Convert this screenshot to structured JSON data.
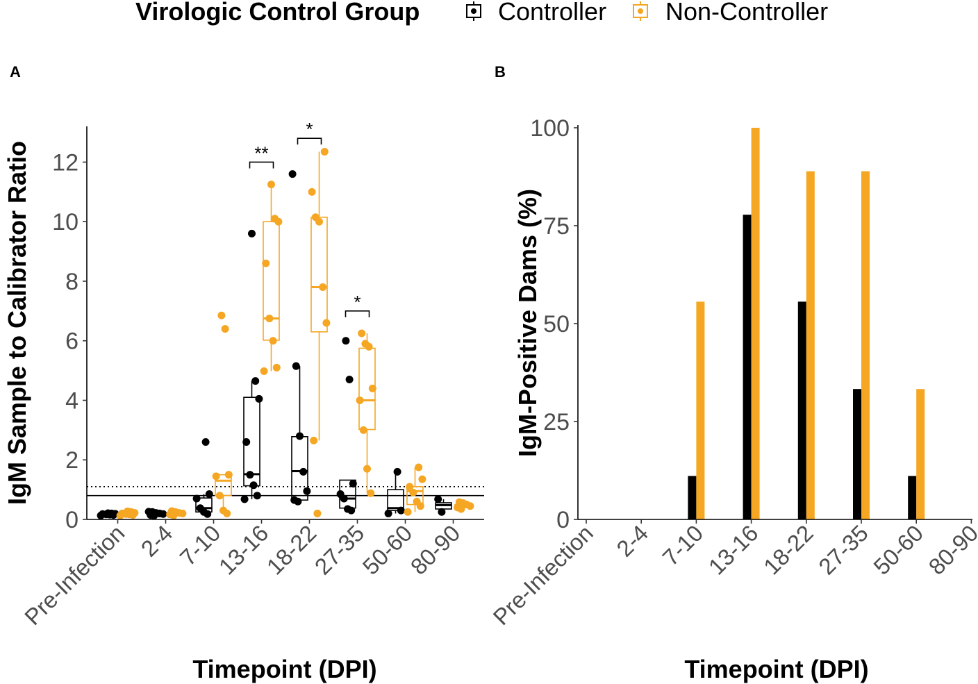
{
  "legend": {
    "title": "Virologic Control Group",
    "items": [
      {
        "label": "Controller",
        "color": "#000000"
      },
      {
        "label": "Non-Controller",
        "color": "#F5A623"
      }
    ]
  },
  "chart_data": [
    {
      "panel": "A",
      "type": "box",
      "xlabel": "Timepoint (DPI)",
      "ylabel": "IgM Sample to Calibrator Ratio",
      "categories": [
        "Pre-Infection",
        "2-4",
        "7-10",
        "13-16",
        "18-22",
        "27-35",
        "50-60",
        "80-90"
      ],
      "ylim": [
        0,
        13.2
      ],
      "yticks": [
        "0",
        "2",
        "4",
        "6",
        "8",
        "10",
        "12"
      ],
      "reference_lines": [
        {
          "y": 0.8,
          "style": "solid"
        },
        {
          "y": 1.1,
          "style": "dotted"
        }
      ],
      "series": [
        {
          "name": "Controller",
          "color": "#000000",
          "boxes": [
            {
              "min": 0.13,
              "q1": 0.15,
              "median": 0.17,
              "q3": 0.19,
              "max": 0.21
            },
            {
              "min": 0.13,
              "q1": 0.16,
              "median": 0.19,
              "q3": 0.22,
              "max": 0.26
            },
            {
              "min": 0.18,
              "q1": 0.25,
              "median": 0.38,
              "q3": 0.72,
              "max": 0.85
            },
            {
              "min": 0.68,
              "q1": 1.13,
              "median": 1.52,
              "q3": 4.1,
              "max": 4.65
            },
            {
              "min": 0.62,
              "q1": 0.65,
              "median": 1.62,
              "q3": 2.78,
              "max": 5.15
            },
            {
              "min": 0.3,
              "q1": 0.38,
              "median": 0.7,
              "q3": 1.32,
              "max": 1.32
            },
            {
              "min": 0.2,
              "q1": 0.3,
              "median": 0.38,
              "q3": 1.0,
              "max": 1.6
            },
            {
              "min": 0.25,
              "q1": 0.35,
              "median": 0.48,
              "q3": 0.56,
              "max": 0.68
            }
          ],
          "points": [
            [
              0.13,
              0.15,
              0.16,
              0.17,
              0.18,
              0.19,
              0.2,
              0.21
            ],
            [
              0.13,
              0.15,
              0.18,
              0.2,
              0.22,
              0.25,
              0.26
            ],
            [
              0.18,
              0.25,
              0.38,
              0.7,
              0.85,
              2.6
            ],
            [
              0.68,
              0.8,
              1.15,
              1.5,
              2.6,
              4.05,
              4.65,
              9.6
            ],
            [
              0.6,
              0.65,
              0.95,
              1.6,
              2.8,
              5.15,
              11.6
            ],
            [
              0.3,
              0.35,
              0.7,
              0.85,
              1.2,
              4.7,
              6.0
            ],
            [
              0.2,
              0.3,
              1.6
            ],
            [
              0.25,
              0.68
            ]
          ]
        },
        {
          "name": "Non-Controller",
          "color": "#F5A623",
          "boxes": [
            {
              "min": 0.13,
              "q1": 0.16,
              "median": 0.18,
              "q3": 0.22,
              "max": 0.27
            },
            {
              "min": 0.13,
              "q1": 0.17,
              "median": 0.2,
              "q3": 0.23,
              "max": 0.28
            },
            {
              "min": 0.2,
              "q1": 0.8,
              "median": 1.3,
              "q3": 1.5,
              "max": 1.5
            },
            {
              "min": 4.98,
              "q1": 6.02,
              "median": 6.75,
              "q3": 10.0,
              "max": 11.25
            },
            {
              "min": 2.65,
              "q1": 6.3,
              "median": 7.8,
              "q3": 10.15,
              "max": 12.35
            },
            {
              "min": 0.88,
              "q1": 3.02,
              "median": 4.0,
              "q3": 5.75,
              "max": 6.25
            },
            {
              "min": 0.25,
              "q1": 0.5,
              "median": 0.95,
              "q3": 1.1,
              "max": 1.75
            },
            {
              "min": 0.35,
              "q1": 0.4,
              "median": 0.45,
              "q3": 0.5,
              "max": 0.58
            }
          ],
          "points": [
            [
              0.13,
              0.15,
              0.17,
              0.18,
              0.2,
              0.22,
              0.25,
              0.27
            ],
            [
              0.13,
              0.17,
              0.2,
              0.22,
              0.25,
              0.28
            ],
            [
              0.2,
              0.3,
              0.8,
              1.45,
              1.5,
              6.4,
              6.85
            ],
            [
              4.98,
              5.1,
              6.0,
              6.75,
              8.6,
              10.0,
              10.1,
              11.25
            ],
            [
              0.2,
              2.65,
              6.6,
              7.8,
              10.0,
              10.15,
              11.0,
              12.35
            ],
            [
              0.88,
              1.7,
              3.0,
              4.0,
              4.4,
              5.8,
              5.9,
              6.25
            ],
            [
              0.25,
              0.45,
              0.6,
              0.9,
              1.1,
              1.35,
              1.75
            ],
            [
              0.35,
              0.4,
              0.45,
              0.5,
              0.55,
              0.58
            ]
          ]
        }
      ],
      "annotations": [
        {
          "text": "**",
          "category": "13-16",
          "y": 12.0
        },
        {
          "text": "*",
          "category": "18-22",
          "y": 12.8
        },
        {
          "text": "*",
          "category": "27-35",
          "y": 7.0
        }
      ]
    },
    {
      "panel": "B",
      "type": "bar",
      "xlabel": "Timepoint (DPI)",
      "ylabel": "IgM-Positive Dams (%)",
      "categories": [
        "Pre-Infection",
        "2-4",
        "7-10",
        "13-16",
        "18-22",
        "27-35",
        "50-60",
        "80-90"
      ],
      "ylim": [
        0,
        100
      ],
      "yticks": [
        "0",
        "25",
        "50",
        "75",
        "100"
      ],
      "series": [
        {
          "name": "Controller",
          "color": "#000000",
          "values": [
            0,
            0,
            11.1,
            77.8,
            55.6,
            33.3,
            11.1,
            0
          ]
        },
        {
          "name": "Non-Controller",
          "color": "#F5A623",
          "values": [
            0,
            0,
            55.6,
            100,
            88.9,
            88.9,
            33.3,
            0
          ]
        }
      ]
    }
  ]
}
